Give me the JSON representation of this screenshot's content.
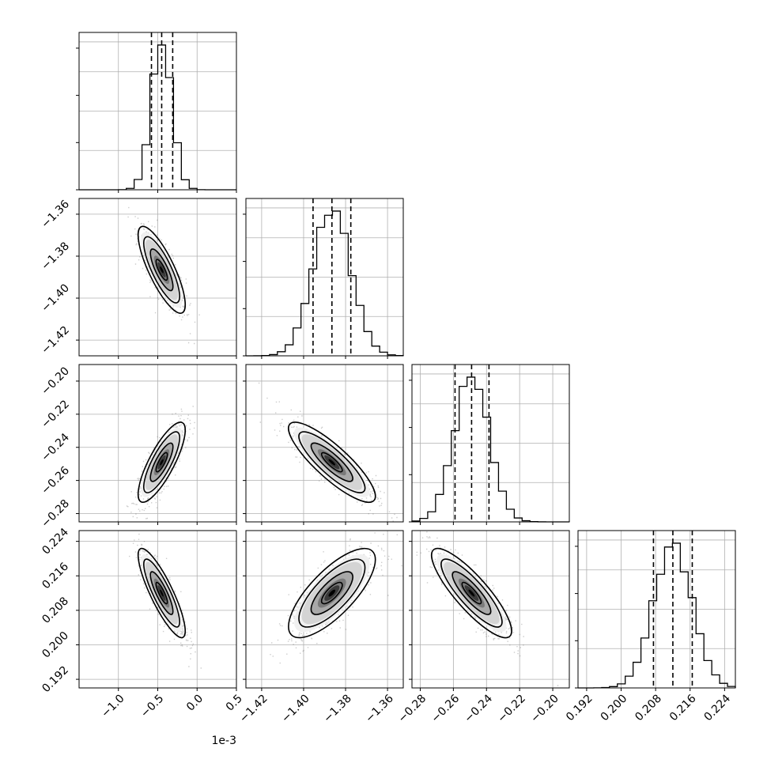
{
  "chart_data": {
    "type": "corner",
    "offset_label": "1e-3",
    "parameters": [
      {
        "index": 0,
        "range": [
          -1.5,
          0.5
        ],
        "ticks": [
          -1.0,
          -0.5,
          0.0,
          0.5
        ],
        "tick_labels": [
          "−1.0",
          "−0.5",
          "0.0",
          "0.5"
        ],
        "mean": -0.45,
        "sigma": 0.13,
        "quantiles": [
          -0.58,
          -0.45,
          -0.31
        ]
      },
      {
        "index": 1,
        "range": [
          -1.4275,
          -1.3525
        ],
        "ticks": [
          -1.42,
          -1.4,
          -1.38,
          -1.36
        ],
        "tick_labels": [
          "−1.42",
          "−1.40",
          "−1.38",
          "−1.36"
        ],
        "mean": -1.3865,
        "sigma": 0.009,
        "quantiles": [
          -1.3955,
          -1.3865,
          -1.3775
        ]
      },
      {
        "index": 2,
        "range": [
          -0.285,
          -0.19
        ],
        "ticks": [
          -0.28,
          -0.26,
          -0.24,
          -0.22,
          -0.2
        ],
        "tick_labels": [
          "−0.28",
          "−0.26",
          "−0.24",
          "−0.22",
          "−0.20"
        ],
        "mean": -0.249,
        "sigma": 0.0105,
        "quantiles": [
          -0.259,
          -0.249,
          -0.2385
        ]
      },
      {
        "index": 3,
        "range": [
          0.19,
          0.2265
        ],
        "ticks": [
          0.192,
          0.2,
          0.208,
          0.216,
          0.224
        ],
        "tick_labels": [
          "0.192",
          "0.200",
          "0.208",
          "0.216",
          "0.224"
        ],
        "mean": 0.212,
        "sigma": 0.0045,
        "quantiles": [
          0.2075,
          0.212,
          0.2165
        ]
      }
    ],
    "correlations": {
      "1_0": -0.8,
      "2_0": 0.8,
      "2_1": -0.85,
      "3_0": -0.85,
      "3_1": 0.75,
      "3_2": -0.85
    },
    "grid": true,
    "diagonal_histogram_bins": 20
  }
}
